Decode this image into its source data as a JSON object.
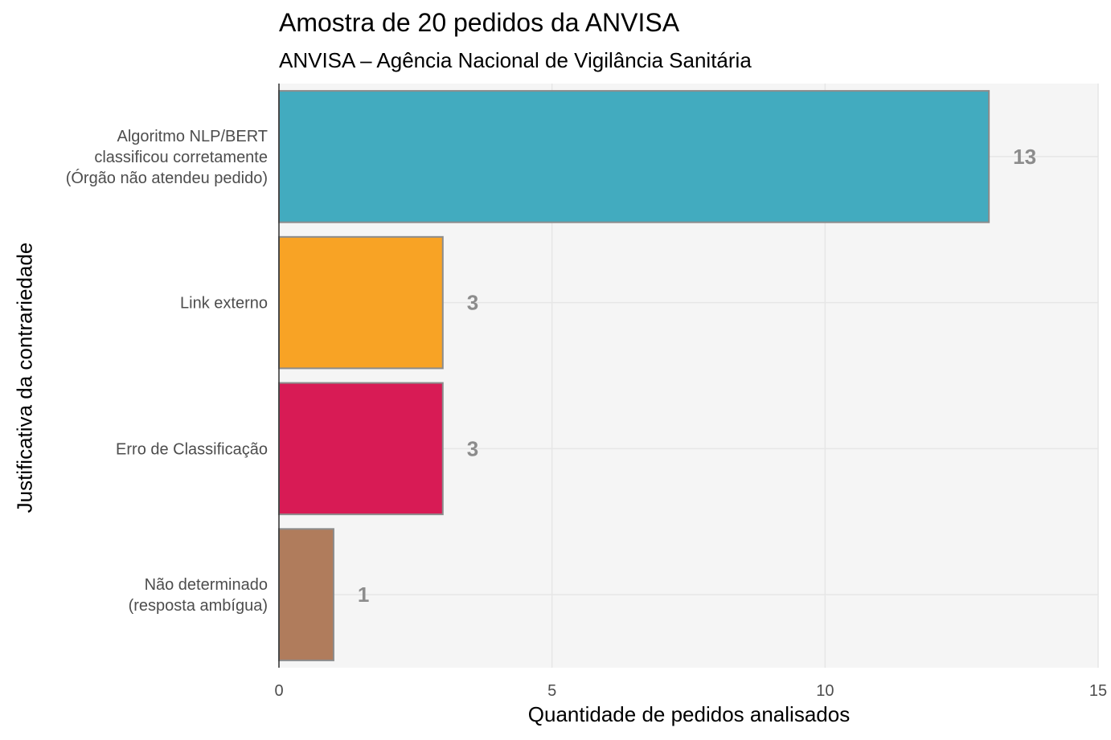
{
  "chart_data": {
    "type": "bar",
    "orientation": "horizontal",
    "title": "Amostra de 20 pedidos da ANVISA",
    "subtitle": "ANVISA – Agência Nacional de Vigilância Sanitária",
    "xlabel": "Quantidade de pedidos analisados",
    "ylabel": "Justificativa da contrariedade",
    "xlim": [
      0,
      15
    ],
    "xticks": [
      "0",
      "5",
      "10",
      "15"
    ],
    "grid": true,
    "legend": "none",
    "categories": [
      {
        "lines": [
          "Algoritmo NLP/BERT",
          "classificou corretamente",
          "(Órgão não atendeu pedido)"
        ],
        "value": 13,
        "label": "13",
        "color": "#42abbf"
      },
      {
        "lines": [
          "Link externo"
        ],
        "value": 3,
        "label": "3",
        "color": "#f8a325"
      },
      {
        "lines": [
          "Erro de Classificação"
        ],
        "value": 3,
        "label": "3",
        "color": "#d81b55"
      },
      {
        "lines": [
          "Não determinado",
          "(resposta ambígua)"
        ],
        "value": 1,
        "label": "1",
        "color": "#b07c5c"
      }
    ],
    "panel_background": "#f5f5f5",
    "bar_border": "#8c8c8c",
    "grid_color": "#e6e6e6"
  }
}
